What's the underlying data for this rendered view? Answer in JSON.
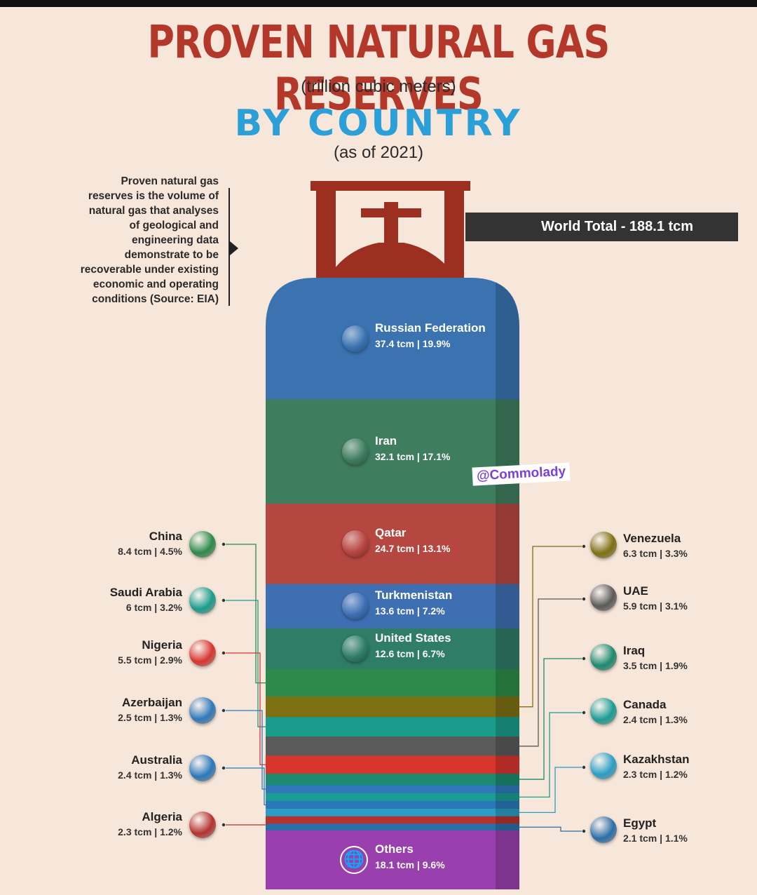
{
  "header": {
    "title": "PROVEN NATURAL GAS RESERVES",
    "unit": "(trillion cubic meters)",
    "subtitle": "BY COUNTRY",
    "date": "(as of 2021)"
  },
  "note": "Proven natural gas reserves is the volume of natural gas that analyses of geological and engineering data demonstrate to be recoverable under existing economic and operating conditions (Source: EIA)",
  "world_total": "World Total - 188.1 tcm",
  "watermark": "@Commolady",
  "colors": {
    "title": "#b3382a",
    "subtitle": "#2a9fd8",
    "background": "#f7e6da",
    "valve": "#9c2f20"
  },
  "chart_data": {
    "type": "bar",
    "unit": "tcm",
    "title": "PROVEN NATURAL GAS RESERVES",
    "total": 188.1,
    "categories": [
      "Russian Federation",
      "Iran",
      "Qatar",
      "Turkmenistan",
      "United States",
      "China",
      "Venezuela",
      "Saudi Arabia",
      "UAE",
      "Nigeria",
      "Iraq",
      "Azerbaijan",
      "Canada",
      "Australia",
      "Kazakhstan",
      "Algeria",
      "Egypt",
      "Others"
    ],
    "values": [
      37.4,
      32.1,
      24.7,
      13.6,
      12.6,
      8.4,
      6.3,
      6,
      5.9,
      5.5,
      3.5,
      2.5,
      2.4,
      2.4,
      2.3,
      2.3,
      2.1,
      18.1
    ],
    "shares": [
      "19.9%",
      "17.1%",
      "13.1%",
      "7.2%",
      "6.7%",
      "4.5%",
      "3.3%",
      "3.2%",
      "3.1%",
      "2.9%",
      "1.9%",
      "1.3%",
      "1.3%",
      "1.3%",
      "1.2%",
      "1.2%",
      "1.1%",
      "9.6%"
    ],
    "value_labels": [
      "37.4 tcm",
      "32.1 tcm",
      "24.7 tcm",
      "13.6 tcm",
      "12.6 tcm",
      "8.4 tcm",
      "6.3 tcm",
      "6 tcm",
      "5.9 tcm",
      "5.5 tcm",
      "3.5 tcm",
      "2.5 tcm",
      "2.4 tcm",
      "2.4 tcm",
      "2.3 tcm",
      "2.3 tcm",
      "2.1 tcm",
      "18.1 tcm"
    ],
    "segment_colors": [
      "#3a73b0",
      "#3f7d5f",
      "#b64640",
      "#3f6fb3",
      "#2f7c67",
      "#2e8a4a",
      "#7d7012",
      "#1a9c8c",
      "#5a5a5a",
      "#d8352f",
      "#1c8a6e",
      "#2f79b9",
      "#1b9c94",
      "#2a78b9",
      "#2a9ec4",
      "#b43230",
      "#2a6ea8",
      "#9a3fae"
    ],
    "side": [
      "center",
      "center",
      "center",
      "center",
      "center",
      "left",
      "right",
      "left",
      "right",
      "left",
      "right",
      "left",
      "right",
      "left",
      "right",
      "left",
      "right",
      "center"
    ]
  }
}
